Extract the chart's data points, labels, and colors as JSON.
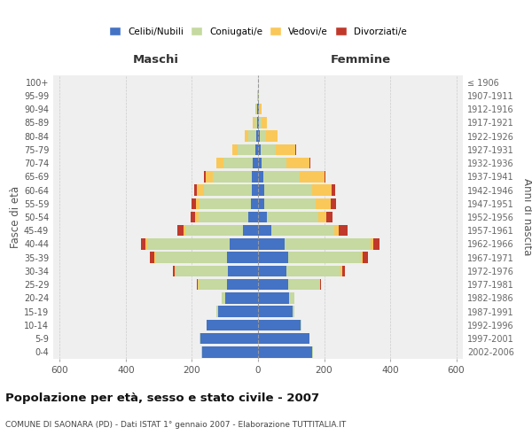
{
  "age_groups": [
    "0-4",
    "5-9",
    "10-14",
    "15-19",
    "20-24",
    "25-29",
    "30-34",
    "35-39",
    "40-44",
    "45-49",
    "50-54",
    "55-59",
    "60-64",
    "65-69",
    "70-74",
    "75-79",
    "80-84",
    "85-89",
    "90-94",
    "95-99",
    "100+"
  ],
  "birth_years": [
    "2002-2006",
    "1997-2001",
    "1992-1996",
    "1987-1991",
    "1982-1986",
    "1977-1981",
    "1972-1976",
    "1967-1971",
    "1962-1966",
    "1957-1961",
    "1952-1956",
    "1947-1951",
    "1942-1946",
    "1937-1941",
    "1932-1936",
    "1927-1931",
    "1922-1926",
    "1917-1921",
    "1912-1916",
    "1907-1911",
    "≤ 1906"
  ],
  "maschi": {
    "celibi": [
      170,
      175,
      155,
      120,
      100,
      95,
      90,
      95,
      85,
      45,
      30,
      22,
      20,
      18,
      15,
      8,
      5,
      3,
      2,
      1,
      0
    ],
    "coniugati": [
      2,
      2,
      2,
      5,
      10,
      85,
      160,
      215,
      250,
      175,
      150,
      155,
      145,
      120,
      90,
      55,
      25,
      8,
      3,
      1,
      0
    ],
    "vedovi": [
      0,
      0,
      0,
      0,
      0,
      2,
      2,
      5,
      5,
      5,
      10,
      12,
      20,
      20,
      20,
      15,
      10,
      5,
      2,
      0,
      0
    ],
    "divorziati": [
      0,
      0,
      0,
      0,
      0,
      2,
      5,
      12,
      15,
      18,
      15,
      12,
      8,
      5,
      2,
      0,
      0,
      0,
      0,
      0,
      0
    ]
  },
  "femmine": {
    "nubili": [
      165,
      155,
      130,
      105,
      95,
      90,
      85,
      90,
      80,
      40,
      28,
      20,
      18,
      15,
      12,
      8,
      5,
      3,
      2,
      1,
      0
    ],
    "coniugate": [
      2,
      2,
      2,
      5,
      15,
      95,
      165,
      220,
      260,
      190,
      155,
      155,
      145,
      110,
      75,
      45,
      18,
      8,
      3,
      1,
      0
    ],
    "vedove": [
      0,
      0,
      0,
      0,
      0,
      3,
      5,
      8,
      10,
      15,
      25,
      45,
      60,
      75,
      70,
      60,
      35,
      15,
      5,
      2,
      0
    ],
    "divorziate": [
      0,
      0,
      0,
      0,
      0,
      3,
      8,
      15,
      18,
      25,
      18,
      15,
      10,
      5,
      2,
      2,
      0,
      0,
      0,
      0,
      0
    ]
  },
  "colors": {
    "celibi": "#4472c4",
    "coniugati": "#c5d9a0",
    "vedovi": "#fac858",
    "divorziati": "#c0392b"
  },
  "xlim": 620,
  "title": "Popolazione per età, sesso e stato civile - 2007",
  "subtitle": "COMUNE DI SAONARA (PD) - Dati ISTAT 1° gennaio 2007 - Elaborazione TUTTITALIA.IT",
  "xlabel_left": "Maschi",
  "xlabel_right": "Femmine",
  "ylabel_left": "Fasce di età",
  "ylabel_right": "Anni di nascita",
  "legend_labels": [
    "Celibi/Nubili",
    "Coniugati/e",
    "Vedovi/e",
    "Divorziati/e"
  ],
  "background_color": "#ffffff",
  "grid_color": "#cccccc",
  "bar_height": 0.82
}
